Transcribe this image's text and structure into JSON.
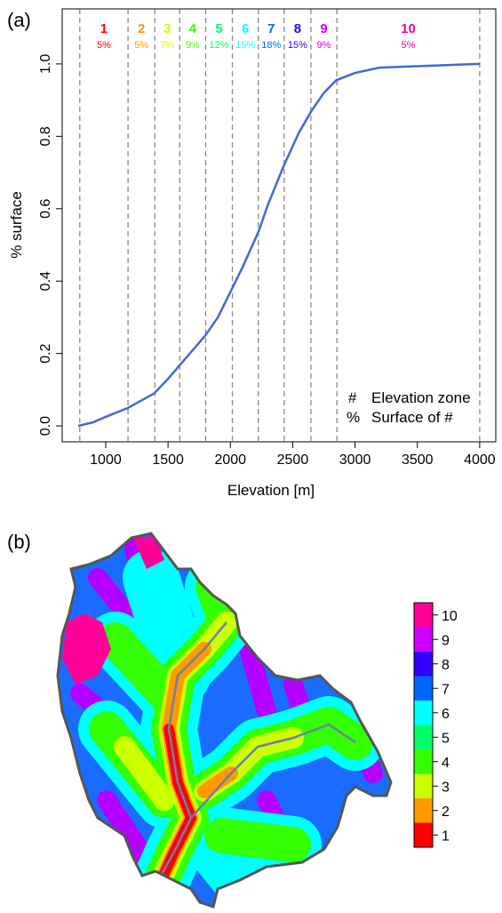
{
  "chart_data": {
    "type": "line",
    "panel_label": "(a)",
    "xlabel": "Elevation [m]",
    "ylabel": "% surface",
    "x": [
      780,
      900,
      1000,
      1180,
      1390,
      1500,
      1600,
      1800,
      1900,
      2000,
      2100,
      2230,
      2300,
      2430,
      2550,
      2650,
      2750,
      2850,
      3000,
      3200,
      4000
    ],
    "values": [
      0,
      0.01,
      0.025,
      0.05,
      0.09,
      0.13,
      0.17,
      0.25,
      0.3,
      0.37,
      0.44,
      0.54,
      0.61,
      0.72,
      0.81,
      0.87,
      0.92,
      0.955,
      0.975,
      0.99,
      1.0
    ],
    "color": "#4169d6",
    "xlim": [
      651,
      4129
    ],
    "ylim": [
      -0.044,
      1.152
    ],
    "xticks": [
      1000,
      1500,
      2000,
      2500,
      3000,
      3500,
      4000
    ],
    "yticks": [
      {
        "value": 0,
        "label": "0.0"
      },
      0.2,
      0.4,
      0.6,
      0.8,
      {
        "value": 1,
        "label": "1.0"
      }
    ],
    "zone_bounds": [
      792,
      1179,
      1394,
      1594,
      1802,
      2016,
      2224,
      2432,
      2646,
      2854,
      4000
    ],
    "zones": {
      "categories": [
        "1",
        "2",
        "3",
        "4",
        "5",
        "6",
        "7",
        "8",
        "9",
        "10"
      ],
      "values": [
        5,
        5,
        7,
        9,
        12,
        15,
        18,
        15,
        9,
        5
      ],
      "value_labels": [
        "5%",
        "5%",
        "7%",
        "9%",
        "12%",
        "15%",
        "18%",
        "15%",
        "9%",
        "5%"
      ],
      "colors": [
        "#FF0000",
        "#FF9900",
        "#CCFF00",
        "#33FF00",
        "#00FF66",
        "#00FFFF",
        "#0066FF",
        "#3300FF",
        "#CC00FF",
        "#FF0099"
      ]
    },
    "annotations": [
      "#",
      "Elevation zone",
      "%",
      "Surface of #"
    ]
  },
  "map": {
    "panel_label": "(b)",
    "colorbar_ticks": [
      1,
      2,
      3,
      4,
      5,
      6,
      7,
      8,
      9,
      10
    ]
  }
}
